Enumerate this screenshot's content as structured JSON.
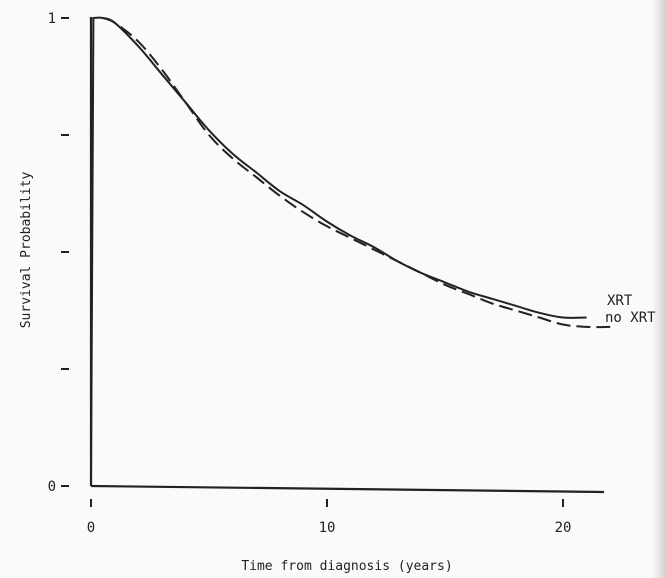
{
  "chart_data": {
    "type": "line",
    "xlabel": "Time from diagnosis (years)",
    "ylabel": "Survival Probability",
    "xlim": [
      0,
      22
    ],
    "ylim": [
      0,
      1
    ],
    "xticks": [
      {
        "value": 0,
        "label": "0"
      },
      {
        "value": 10,
        "label": "10"
      },
      {
        "value": 20,
        "label": "20"
      }
    ],
    "yticks": [
      {
        "value": 0,
        "label": "0"
      },
      {
        "value": 0.25,
        "label": ""
      },
      {
        "value": 0.5,
        "label": ""
      },
      {
        "value": 0.75,
        "label": ""
      },
      {
        "value": 1,
        "label": "1"
      }
    ],
    "series": [
      {
        "name": "XRT",
        "style": "solid",
        "x": [
          0,
          0.1,
          0.5,
          1,
          2,
          3,
          4,
          5,
          6,
          7,
          8,
          9,
          10,
          11,
          12,
          13,
          14,
          15,
          16,
          17,
          18,
          19,
          20,
          21
        ],
        "y": [
          0,
          1.0,
          1.0,
          0.99,
          0.94,
          0.88,
          0.82,
          0.76,
          0.71,
          0.67,
          0.63,
          0.6,
          0.565,
          0.535,
          0.51,
          0.48,
          0.455,
          0.435,
          0.415,
          0.4,
          0.385,
          0.37,
          0.36,
          0.36
        ]
      },
      {
        "name": "no XRT",
        "style": "dashed",
        "x": [
          0.5,
          1,
          2,
          3,
          4,
          5,
          6,
          7,
          8,
          9,
          10,
          11,
          12,
          13,
          14,
          15,
          16,
          17,
          18,
          19,
          20,
          21,
          22
        ],
        "y": [
          1.0,
          0.99,
          0.95,
          0.89,
          0.82,
          0.75,
          0.7,
          0.66,
          0.62,
          0.585,
          0.555,
          0.53,
          0.505,
          0.48,
          0.455,
          0.43,
          0.41,
          0.39,
          0.375,
          0.36,
          0.345,
          0.34,
          0.34
        ]
      }
    ],
    "grid": false,
    "legend": "inline labels at line ends"
  }
}
